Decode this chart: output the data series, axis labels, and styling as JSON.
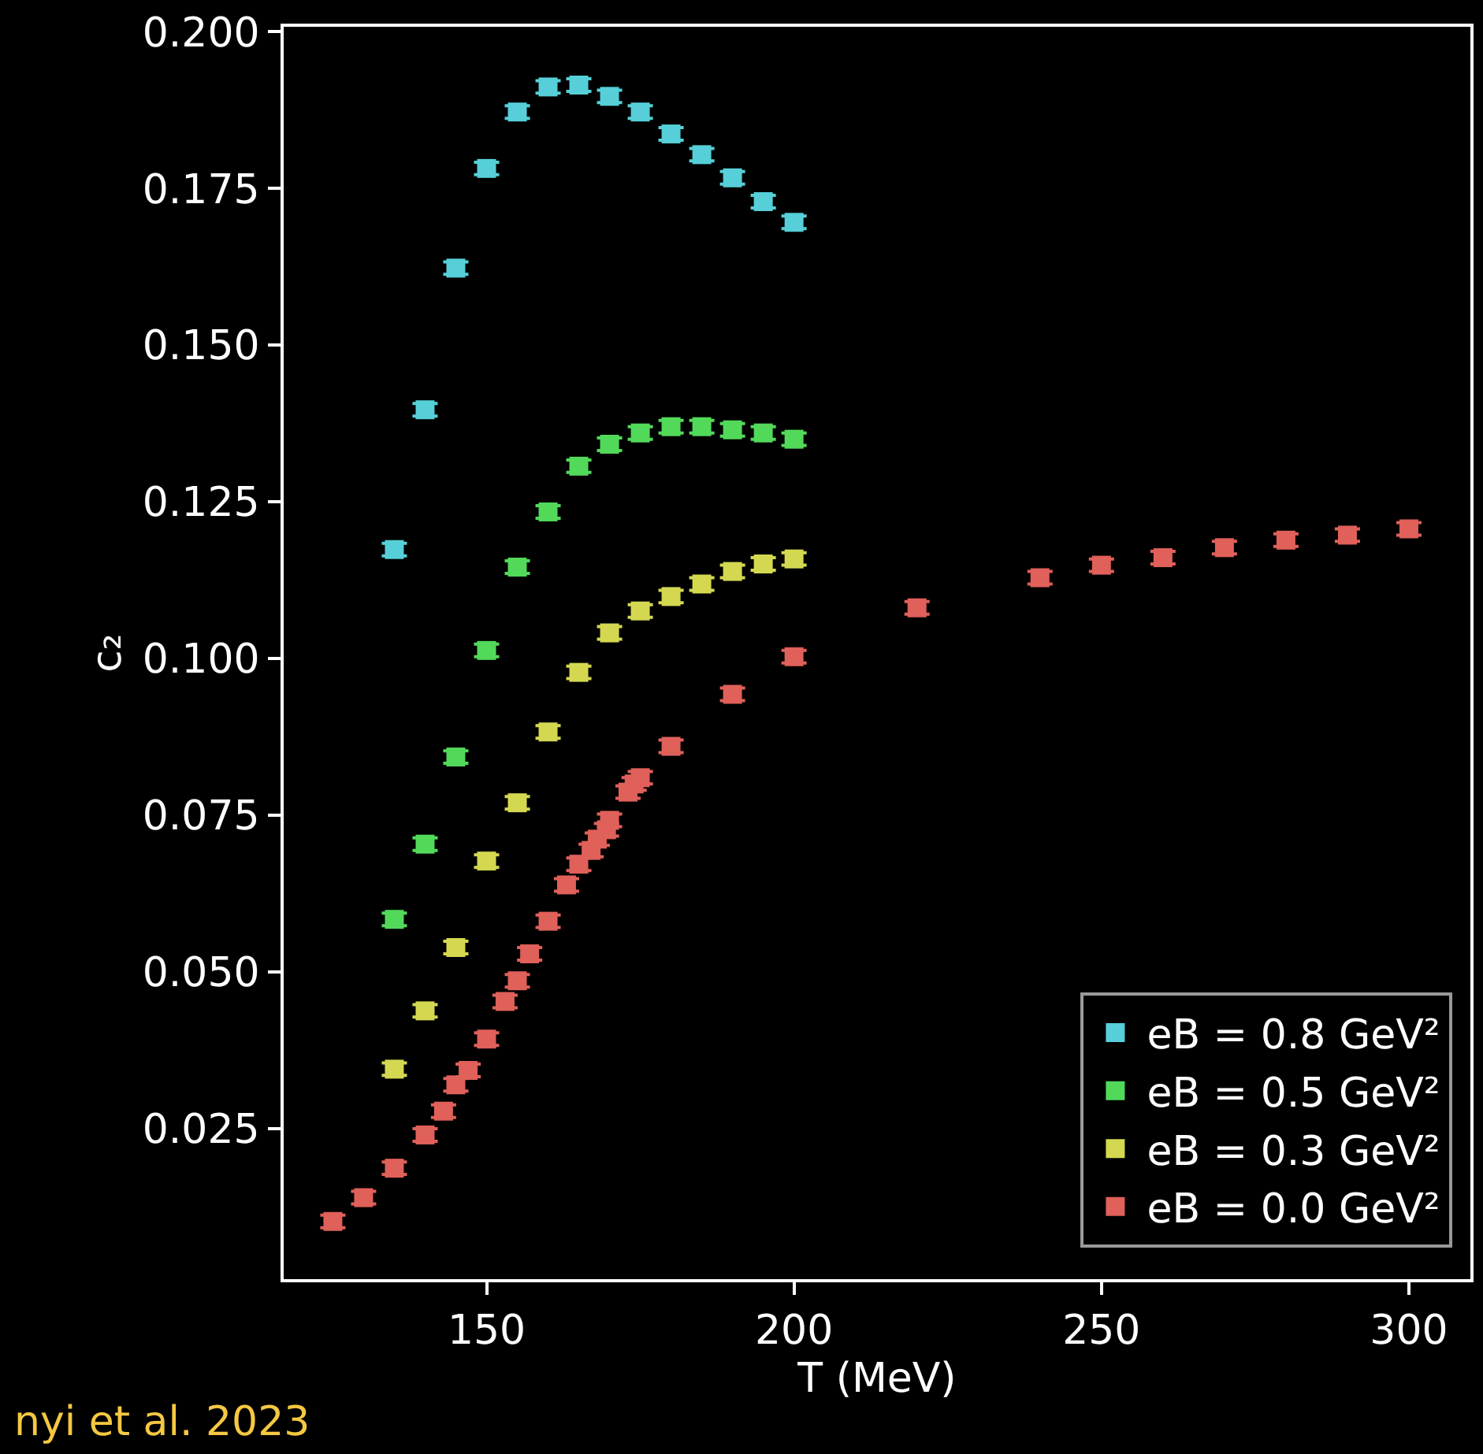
{
  "chart_data": {
    "type": "scatter",
    "xlabel": "T (MeV)",
    "ylabel": "c₂",
    "marker": "square",
    "grid": false,
    "legend": "bottom right",
    "xlim": [
      117,
      310
    ],
    "xticks": [
      150,
      200,
      250,
      300
    ],
    "ylim": [
      0.001,
      0.2008
    ],
    "yticks": [
      0.025,
      {
        "value": 0.05,
        "label": "0.050"
      },
      0.075,
      {
        "value": 0.1,
        "label": "0.100"
      },
      0.125,
      {
        "value": 0.15,
        "label": "0.150"
      },
      0.175,
      {
        "value": 0.2,
        "label": "0.200"
      }
    ],
    "series": [
      {
        "name": "eB = 0.8 GeV²",
        "color": "#56cfd8",
        "x": [
          135,
          140,
          145,
          150,
          155,
          160,
          165,
          170,
          175,
          180,
          185,
          190,
          195,
          200
        ],
        "values": [
          0.1174,
          0.1397,
          0.1623,
          0.1782,
          0.1872,
          0.1912,
          0.1915,
          0.1897,
          0.1872,
          0.1837,
          0.1804,
          0.1767,
          0.1729,
          0.1696
        ],
        "errors": [
          0.001,
          0.001,
          0.001,
          0.001,
          0.001,
          0.001,
          0.001,
          0.001,
          0.001,
          0.001,
          0.001,
          0.001,
          0.001,
          0.001
        ]
      },
      {
        "name": "eB = 0.5 GeV²",
        "color": "#52d95a",
        "x": [
          135,
          140,
          145,
          150,
          155,
          160,
          165,
          170,
          175,
          180,
          185,
          190,
          195,
          200
        ],
        "values": [
          0.0584,
          0.0704,
          0.0843,
          0.1013,
          0.1146,
          0.1234,
          0.1307,
          0.1342,
          0.136,
          0.137,
          0.137,
          0.1365,
          0.136,
          0.135
        ],
        "errors": [
          0.001,
          0.001,
          0.001,
          0.001,
          0.001,
          0.001,
          0.001,
          0.001,
          0.001,
          0.001,
          0.001,
          0.001,
          0.001,
          0.001
        ]
      },
      {
        "name": "eB = 0.3 GeV²",
        "color": "#d4d851",
        "x": [
          135,
          140,
          145,
          150,
          155,
          160,
          165,
          170,
          175,
          180,
          185,
          190,
          195,
          200
        ],
        "values": [
          0.0345,
          0.0438,
          0.0539,
          0.0677,
          0.077,
          0.0883,
          0.0978,
          0.1041,
          0.1076,
          0.1099,
          0.1119,
          0.1139,
          0.1151,
          0.1159
        ],
        "errors": [
          0.001,
          0.001,
          0.001,
          0.001,
          0.001,
          0.001,
          0.001,
          0.001,
          0.001,
          0.001,
          0.001,
          0.001,
          0.001,
          0.001
        ]
      },
      {
        "name": "eB = 0.0 GeV²",
        "color": "#e0605a",
        "x": [
          125,
          130,
          135,
          140,
          143,
          145,
          147,
          150,
          153,
          155,
          157,
          160,
          163,
          165,
          167,
          168,
          169.5,
          170,
          173,
          174,
          175,
          180,
          190,
          200,
          220,
          240,
          250,
          260,
          270,
          280,
          290,
          300
        ],
        "values": [
          0.0102,
          0.014,
          0.0187,
          0.024,
          0.0278,
          0.032,
          0.0343,
          0.0393,
          0.0453,
          0.0486,
          0.0529,
          0.0581,
          0.0639,
          0.0672,
          0.0694,
          0.0712,
          0.0727,
          0.0742,
          0.0787,
          0.08,
          0.081,
          0.086,
          0.0943,
          0.1003,
          0.1081,
          0.1129,
          0.1149,
          0.1161,
          0.1177,
          0.1189,
          0.1197,
          0.1207
        ],
        "errors": [
          0.001,
          0.001,
          0.001,
          0.001,
          0.001,
          0.001,
          0.001,
          0.001,
          0.001,
          0.001,
          0.001,
          0.001,
          0.001,
          0.001,
          0.001,
          0.001,
          0.001,
          0.001,
          0.001,
          0.001,
          0.001,
          0.001,
          0.001,
          0.001,
          0.001,
          0.001,
          0.001,
          0.001,
          0.001,
          0.001,
          0.001,
          0.001
        ]
      }
    ],
    "annotations": [
      "nyi et al. 2023"
    ]
  }
}
